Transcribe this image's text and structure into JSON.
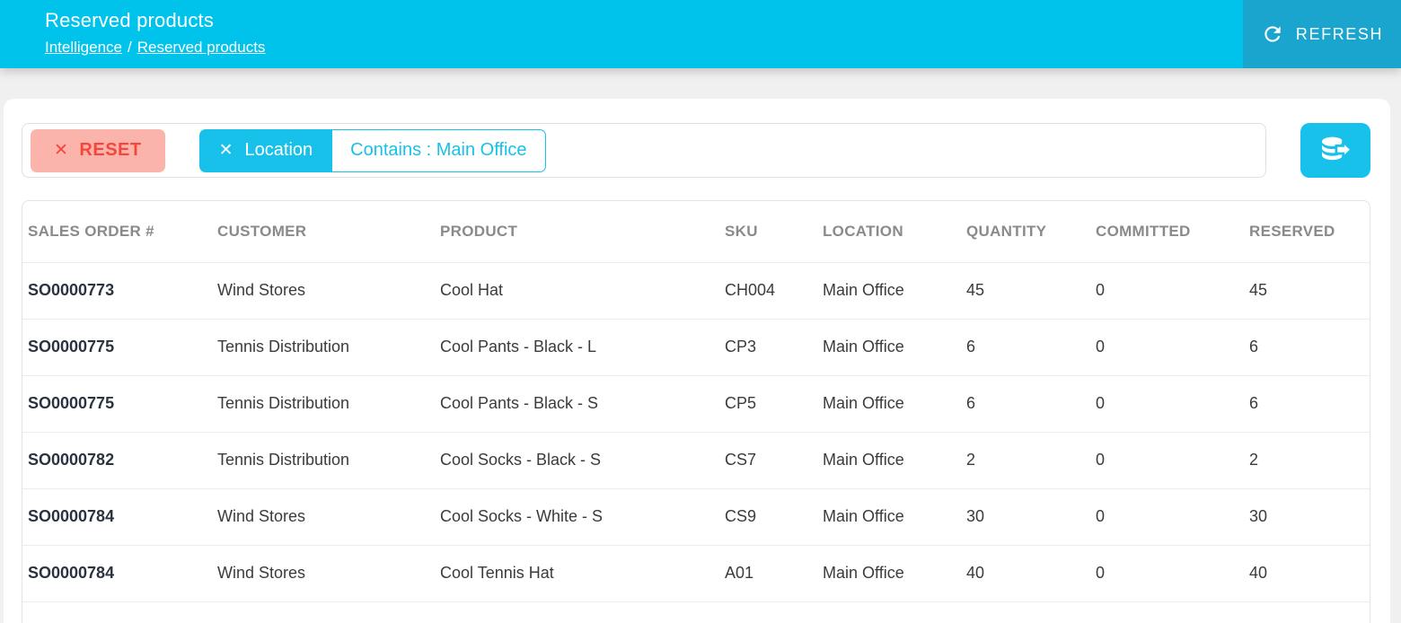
{
  "header": {
    "title": "Reserved products",
    "breadcrumb": {
      "parent": "Intelligence",
      "separator": "/",
      "current": "Reserved products"
    },
    "refresh": {
      "label": "REFRESH",
      "icon": "refresh-icon"
    }
  },
  "filter_bar": {
    "reset": {
      "label": "RESET",
      "icon": "close-icon"
    },
    "chips": [
      {
        "field": "Location",
        "condition": "Contains : Main Office",
        "icon": "close-icon"
      }
    ],
    "export_button": {
      "icon": "database-export-icon"
    }
  },
  "table": {
    "columns": [
      "SALES ORDER #",
      "CUSTOMER",
      "PRODUCT",
      "SKU",
      "LOCATION",
      "QUANTITY",
      "COMMITTED",
      "RESERVED"
    ],
    "column_keys": [
      "sales-order-number",
      "customer",
      "product",
      "sku",
      "location",
      "quantity",
      "committed",
      "reserved"
    ],
    "rows": [
      [
        "SO0000773",
        "Wind Stores",
        "Cool Hat",
        "CH004",
        "Main Office",
        "45",
        "0",
        "45"
      ],
      [
        "SO0000775",
        "Tennis Distribution",
        "Cool Pants - Black - L",
        "CP3",
        "Main Office",
        "6",
        "0",
        "6"
      ],
      [
        "SO0000775",
        "Tennis Distribution",
        "Cool Pants - Black - S",
        "CP5",
        "Main Office",
        "6",
        "0",
        "6"
      ],
      [
        "SO0000782",
        "Tennis Distribution",
        "Cool Socks - Black - S",
        "CS7",
        "Main Office",
        "2",
        "0",
        "2"
      ],
      [
        "SO0000784",
        "Wind Stores",
        "Cool Socks - White - S",
        "CS9",
        "Main Office",
        "30",
        "0",
        "30"
      ],
      [
        "SO0000784",
        "Wind Stores",
        "Cool Tennis Hat",
        "A01",
        "Main Office",
        "40",
        "0",
        "40"
      ]
    ]
  },
  "colors": {
    "header_bg": "#00C3EB",
    "refresh_button_bg": "#1AA5CE",
    "accent_cyan": "#18C1E9",
    "reset_bg": "#FBB4AB",
    "reset_text": "#F4473B",
    "table_header_text": "#8A8A8A",
    "sales_order_text": "#2B3340"
  }
}
